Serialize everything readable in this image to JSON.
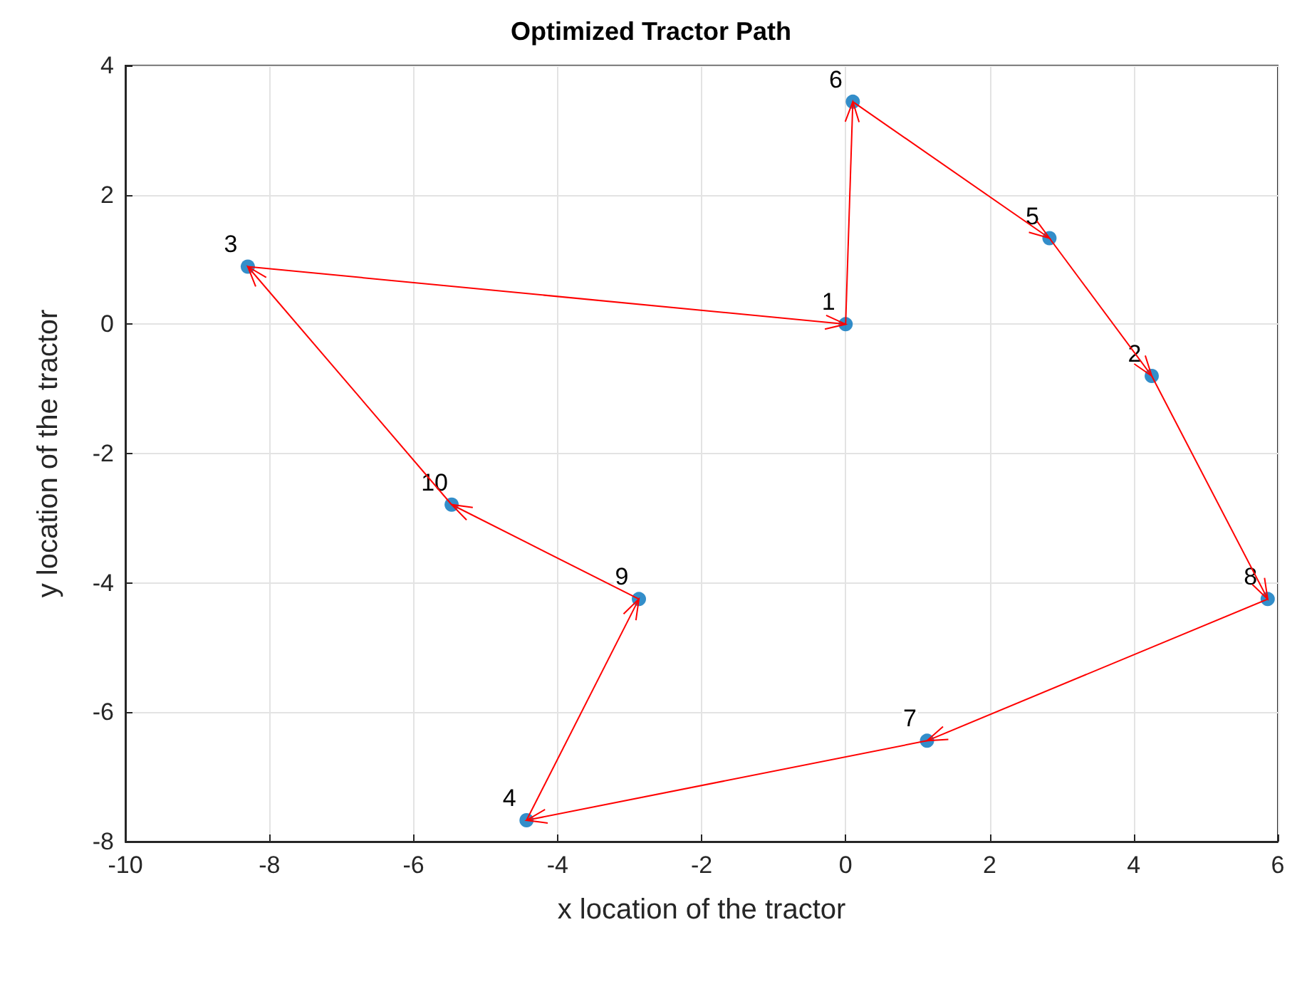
{
  "chart_data": {
    "type": "scatter",
    "title": "Optimized Tractor Path",
    "xlabel": "x location of the tractor",
    "ylabel": "y location of the tractor",
    "xlim": [
      -10,
      6
    ],
    "xticks": [
      -10,
      -8,
      -6,
      -4,
      -2,
      0,
      2,
      4,
      6
    ],
    "ylim": [
      -8,
      4
    ],
    "yticks": [
      -8,
      -6,
      -4,
      -2,
      0,
      2,
      4
    ],
    "grid": true,
    "series": [
      {
        "color": "#0072bd",
        "marker": "circle",
        "x": [
          0,
          4.25,
          -8.3,
          -4.43,
          2.83,
          0.1,
          1.13,
          5.86,
          -2.87,
          -5.47
        ],
        "values": [
          0,
          -0.8,
          0.89,
          -7.67,
          1.33,
          3.44,
          -6.44,
          -4.25,
          -4.25,
          -2.79
        ]
      }
    ],
    "annotations": [
      {
        "text": "1",
        "x": 0,
        "y": 0
      },
      {
        "text": "6",
        "x": 0.1,
        "y": 3.44
      },
      {
        "text": "5",
        "x": 2.83,
        "y": 1.33
      },
      {
        "text": "2",
        "x": 4.25,
        "y": -0.8
      },
      {
        "text": "8",
        "x": 5.86,
        "y": -4.25
      },
      {
        "text": "7",
        "x": 1.13,
        "y": -6.44
      },
      {
        "text": "4",
        "x": -4.43,
        "y": -7.67
      },
      {
        "text": "9",
        "x": -2.87,
        "y": -4.25
      },
      {
        "text": "10",
        "x": -5.47,
        "y": -2.79
      },
      {
        "text": "3",
        "x": -8.3,
        "y": 0.89
      }
    ]
  }
}
